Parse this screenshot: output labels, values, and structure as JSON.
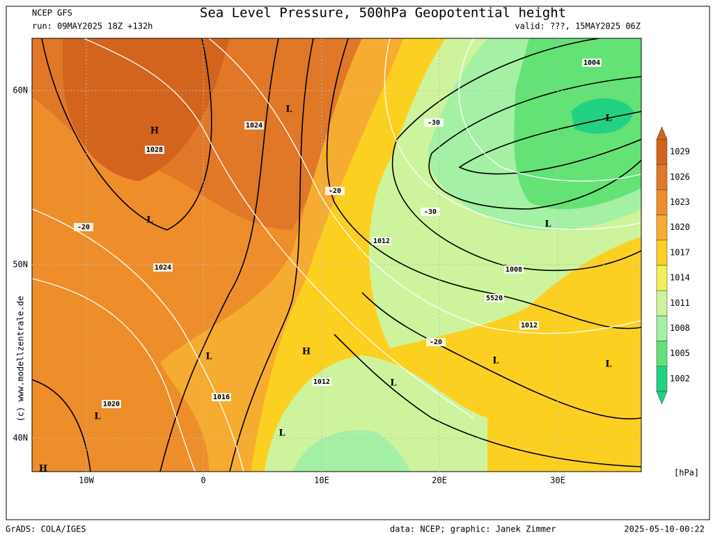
{
  "header": {
    "model": "NCEP GFS",
    "run": "run: 09MAY2025 18Z +132h",
    "title": "Sea Level Pressure, 500hPa Geopotential height",
    "valid": "valid: ???, 15MAY2025 06Z"
  },
  "axes": {
    "lat": [
      "60N",
      "50N",
      "40N"
    ],
    "lon": [
      "10W",
      "0",
      "10E",
      "20E",
      "30E"
    ]
  },
  "colorbar": {
    "levels": [
      "1029",
      "1026",
      "1023",
      "1020",
      "1017",
      "1014",
      "1011",
      "1008",
      "1005",
      "1002"
    ],
    "colors": [
      "#d2641e",
      "#e07828",
      "#ee8e2a",
      "#f6ac30",
      "#fcd020",
      "#f2f05a",
      "#cdf49c",
      "#a4f0a4",
      "#64e276",
      "#22d282"
    ],
    "unit": "[hPa]"
  },
  "map_labels": [
    "H",
    "1028",
    "1024",
    "L",
    "L",
    "-20",
    "1024",
    "-20",
    "1012",
    "1004",
    "L",
    "L",
    "-30",
    "-30",
    "1008",
    "5520",
    "1012",
    "-20",
    "L",
    "L",
    "H",
    "L",
    "1012",
    "L",
    "1016",
    "1020",
    "L",
    "L",
    "H"
  ],
  "copyright": "(c) www.modellzentrale.de",
  "footer": {
    "left": "GrADS: COLA/IGES",
    "center": "data: NCEP; graphic: Janek Zimmer",
    "right": "2025-05-10-00:22"
  }
}
